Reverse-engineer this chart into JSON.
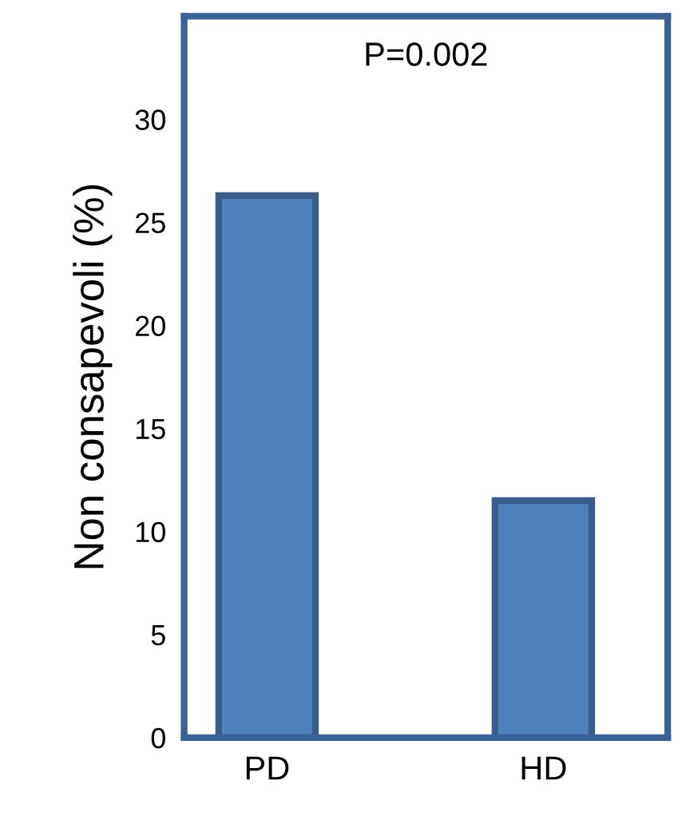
{
  "chart_data": {
    "type": "bar",
    "categories": [
      "PD",
      "HD"
    ],
    "values": [
      26.3,
      11.5
    ],
    "color": "#4f81bd",
    "ylabel": "Non consapevoli (%)",
    "ylim": [
      0,
      35
    ],
    "yticks": [
      0,
      5,
      10,
      15,
      20,
      25,
      30
    ],
    "annotations": [
      "P=0.002"
    ],
    "grid": false,
    "legend": false
  }
}
